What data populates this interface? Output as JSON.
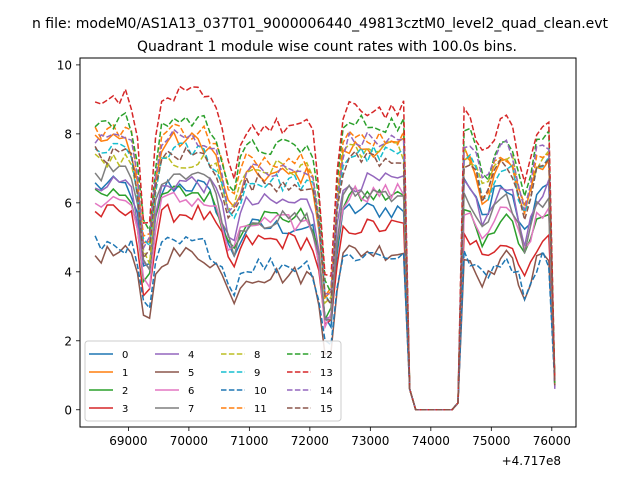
{
  "suptitle": "n file: modeM0/AS1A13_037T01_9000006440_49813cztM0_level2_quad_clean.evt",
  "chart_data": {
    "type": "line",
    "title": "Quadrant 1 module wise count rates with 100.0s bins.",
    "xlabel": "",
    "ylabel": "",
    "x_offset_label": "+4.717e8",
    "xlim": [
      68200,
      76400
    ],
    "ylim": [
      -0.5,
      10.2
    ],
    "xticks": [
      69000,
      70000,
      71000,
      72000,
      73000,
      74000,
      75000,
      76000
    ],
    "xtick_labels": [
      "69000",
      "70000",
      "71000",
      "72000",
      "73000",
      "74000",
      "75000",
      "76000"
    ],
    "yticks": [
      0,
      2,
      4,
      6,
      8,
      10
    ],
    "ytick_labels": [
      "0",
      "2",
      "4",
      "6",
      "8",
      "10"
    ],
    "grid": false,
    "legend_position": "lower-left",
    "x_segments": [
      {
        "start": 68450,
        "end": 73650
      },
      {
        "start": 73750,
        "end": 74350
      },
      {
        "start": 74450,
        "end": 76050
      }
    ],
    "series": [
      {
        "name": "0",
        "color": "#1f77b4",
        "dash": "solid",
        "levels": [
          6.5,
          5.3,
          5.8,
          6.6
        ]
      },
      {
        "name": "1",
        "color": "#ff7f0e",
        "dash": "solid",
        "levels": [
          7.8,
          6.8,
          7.6,
          7.2
        ]
      },
      {
        "name": "2",
        "color": "#2ca02c",
        "dash": "solid",
        "levels": [
          6.3,
          5.6,
          6.2,
          5.7
        ]
      },
      {
        "name": "3",
        "color": "#d62728",
        "dash": "solid",
        "levels": [
          5.7,
          4.9,
          5.3,
          5.0
        ]
      },
      {
        "name": "4",
        "color": "#9467bd",
        "dash": "solid",
        "levels": [
          6.6,
          6.0,
          6.6,
          6.4
        ]
      },
      {
        "name": "5",
        "color": "#8c564b",
        "dash": "solid",
        "levels": [
          4.5,
          3.9,
          4.6,
          4.4
        ]
      },
      {
        "name": "6",
        "color": "#e377c2",
        "dash": "solid",
        "levels": [
          6.1,
          5.4,
          6.3,
          5.8
        ]
      },
      {
        "name": "7",
        "color": "#7f7f7f",
        "dash": "solid",
        "levels": [
          6.9,
          5.5,
          6.3,
          6.1
        ]
      },
      {
        "name": "8",
        "color": "#bcbd22",
        "dash": "dashed",
        "levels": [
          7.2,
          7.0,
          7.5,
          7.4
        ]
      },
      {
        "name": "9",
        "color": "#17becf",
        "dash": "dashed",
        "levels": [
          7.5,
          6.6,
          7.4,
          7.2
        ]
      },
      {
        "name": "10",
        "color": "#1f77b4",
        "dash": "dashed",
        "levels": [
          4.8,
          4.2,
          4.5,
          4.4
        ]
      },
      {
        "name": "11",
        "color": "#ff7f0e",
        "dash": "dashed",
        "levels": [
          8.1,
          7.3,
          7.9,
          7.4
        ]
      },
      {
        "name": "12",
        "color": "#2ca02c",
        "dash": "dashed",
        "levels": [
          8.4,
          7.6,
          8.3,
          8.0
        ]
      },
      {
        "name": "13",
        "color": "#d62728",
        "dash": "dashed",
        "levels": [
          9.1,
          8.2,
          8.7,
          8.5
        ]
      },
      {
        "name": "14",
        "color": "#9467bd",
        "dash": "dashed",
        "levels": [
          7.9,
          6.9,
          7.8,
          7.7
        ]
      },
      {
        "name": "15",
        "color": "#8c564b",
        "dash": "dashed",
        "levels": [
          7.4,
          6.6,
          7.3,
          7.1
        ]
      }
    ],
    "dip_centers": [
      69300,
      70700,
      72300,
      74900,
      75550
    ],
    "dip_depths": [
      0.42,
      0.18,
      0.58,
      0.15,
      0.22
    ]
  }
}
